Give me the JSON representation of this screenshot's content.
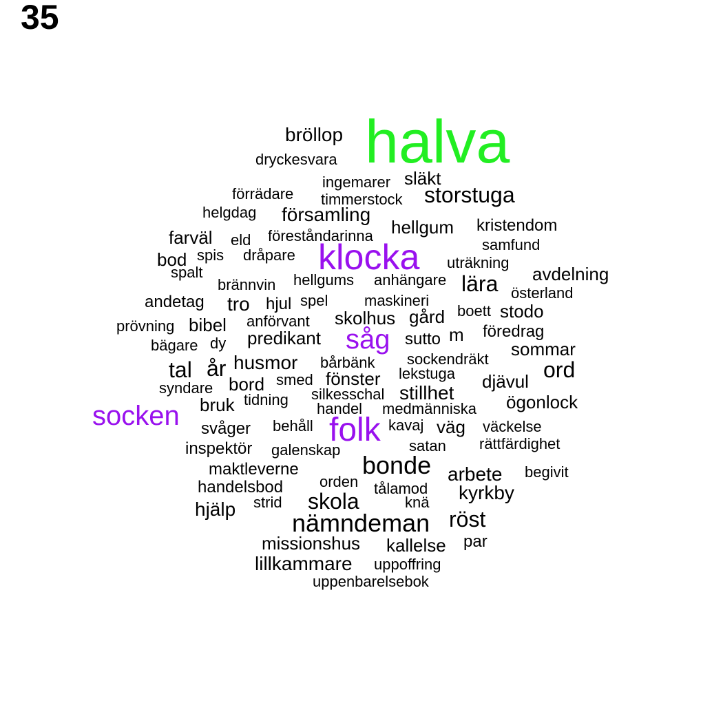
{
  "page_number": "35",
  "colors": {
    "green": "#22ee22",
    "purple": "#9911ee",
    "black": "#000000"
  },
  "words": [
    {
      "text": "halva",
      "color": "green"
    },
    {
      "text": "bröllop",
      "color": "black"
    },
    {
      "text": "dryckesvara",
      "color": "black"
    },
    {
      "text": "släkt",
      "color": "black"
    },
    {
      "text": "ingemarer",
      "color": "black"
    },
    {
      "text": "förrädare",
      "color": "black"
    },
    {
      "text": "timmerstock",
      "color": "black"
    },
    {
      "text": "storstuga",
      "color": "black"
    },
    {
      "text": "helgdag",
      "color": "black"
    },
    {
      "text": "församling",
      "color": "black"
    },
    {
      "text": "farväl",
      "color": "black"
    },
    {
      "text": "eld",
      "color": "black"
    },
    {
      "text": "föreståndarinna",
      "color": "black"
    },
    {
      "text": "hellgum",
      "color": "black"
    },
    {
      "text": "kristendom",
      "color": "black"
    },
    {
      "text": "samfund",
      "color": "black"
    },
    {
      "text": "bod",
      "color": "black"
    },
    {
      "text": "spis",
      "color": "black"
    },
    {
      "text": "dråpare",
      "color": "black"
    },
    {
      "text": "klocka",
      "color": "purple"
    },
    {
      "text": "uträkning",
      "color": "black"
    },
    {
      "text": "spalt",
      "color": "black"
    },
    {
      "text": "avdelning",
      "color": "black"
    },
    {
      "text": "brännvin",
      "color": "black"
    },
    {
      "text": "hellgums",
      "color": "black"
    },
    {
      "text": "anhängare",
      "color": "black"
    },
    {
      "text": "lära",
      "color": "black"
    },
    {
      "text": "österland",
      "color": "black"
    },
    {
      "text": "andetag",
      "color": "black"
    },
    {
      "text": "tro",
      "color": "black"
    },
    {
      "text": "hjul",
      "color": "black"
    },
    {
      "text": "spel",
      "color": "black"
    },
    {
      "text": "maskineri",
      "color": "black"
    },
    {
      "text": "boett",
      "color": "black"
    },
    {
      "text": "stodo",
      "color": "black"
    },
    {
      "text": "prövning",
      "color": "black"
    },
    {
      "text": "bibel",
      "color": "black"
    },
    {
      "text": "anförvant",
      "color": "black"
    },
    {
      "text": "skolhus",
      "color": "black"
    },
    {
      "text": "gård",
      "color": "black"
    },
    {
      "text": "föredrag",
      "color": "black"
    },
    {
      "text": "bägare",
      "color": "black"
    },
    {
      "text": "dy",
      "color": "black"
    },
    {
      "text": "predikant",
      "color": "black"
    },
    {
      "text": "såg",
      "color": "purple"
    },
    {
      "text": "sutto",
      "color": "black"
    },
    {
      "text": "m",
      "color": "black"
    },
    {
      "text": "sommar",
      "color": "black"
    },
    {
      "text": "tal",
      "color": "black"
    },
    {
      "text": "år",
      "color": "black"
    },
    {
      "text": "husmor",
      "color": "black"
    },
    {
      "text": "bårbänk",
      "color": "black"
    },
    {
      "text": "sockendräkt",
      "color": "black"
    },
    {
      "text": "ord",
      "color": "black"
    },
    {
      "text": "syndare",
      "color": "black"
    },
    {
      "text": "bord",
      "color": "black"
    },
    {
      "text": "smed",
      "color": "black"
    },
    {
      "text": "fönster",
      "color": "black"
    },
    {
      "text": "lekstuga",
      "color": "black"
    },
    {
      "text": "djävul",
      "color": "black"
    },
    {
      "text": "bruk",
      "color": "black"
    },
    {
      "text": "tidning",
      "color": "black"
    },
    {
      "text": "silkesschal",
      "color": "black"
    },
    {
      "text": "stillhet",
      "color": "black"
    },
    {
      "text": "ögonlock",
      "color": "black"
    },
    {
      "text": "socken",
      "color": "purple"
    },
    {
      "text": "handel",
      "color": "black"
    },
    {
      "text": "medmänniska",
      "color": "black"
    },
    {
      "text": "svåger",
      "color": "black"
    },
    {
      "text": "behåll",
      "color": "black"
    },
    {
      "text": "folk",
      "color": "purple"
    },
    {
      "text": "kavaj",
      "color": "black"
    },
    {
      "text": "väg",
      "color": "black"
    },
    {
      "text": "väckelse",
      "color": "black"
    },
    {
      "text": "inspektör",
      "color": "black"
    },
    {
      "text": "galenskap",
      "color": "black"
    },
    {
      "text": "satan",
      "color": "black"
    },
    {
      "text": "rättfärdighet",
      "color": "black"
    },
    {
      "text": "maktleverne",
      "color": "black"
    },
    {
      "text": "bonde",
      "color": "black"
    },
    {
      "text": "arbete",
      "color": "black"
    },
    {
      "text": "begivit",
      "color": "black"
    },
    {
      "text": "handelsbod",
      "color": "black"
    },
    {
      "text": "orden",
      "color": "black"
    },
    {
      "text": "tålamod",
      "color": "black"
    },
    {
      "text": "kyrkby",
      "color": "black"
    },
    {
      "text": "hjälp",
      "color": "black"
    },
    {
      "text": "strid",
      "color": "black"
    },
    {
      "text": "skola",
      "color": "black"
    },
    {
      "text": "knä",
      "color": "black"
    },
    {
      "text": "nämndeman",
      "color": "black"
    },
    {
      "text": "röst",
      "color": "black"
    },
    {
      "text": "missionshus",
      "color": "black"
    },
    {
      "text": "kallelse",
      "color": "black"
    },
    {
      "text": "par",
      "color": "black"
    },
    {
      "text": "lillkammare",
      "color": "black"
    },
    {
      "text": "uppoffring",
      "color": "black"
    },
    {
      "text": "uppenbarelsebok",
      "color": "black"
    }
  ]
}
